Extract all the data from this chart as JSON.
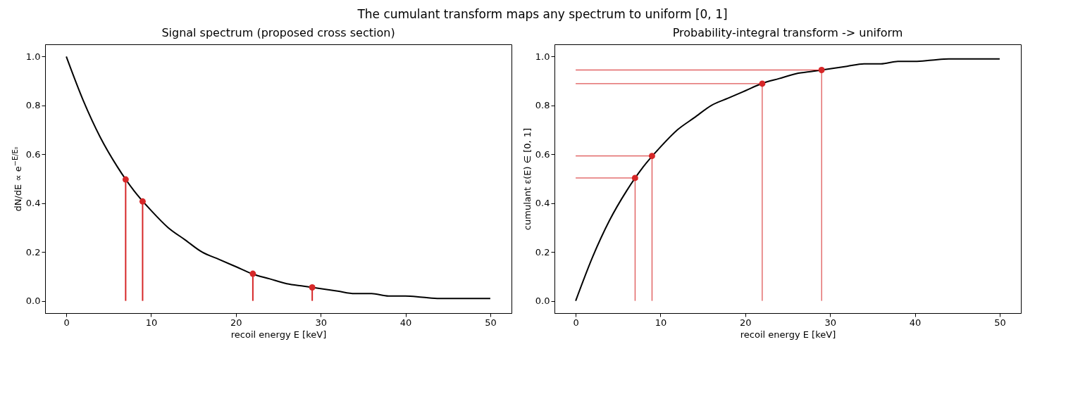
{
  "chart_data": [
    {
      "type": "line",
      "title": "Signal spectrum (proposed cross section)",
      "xlabel": "recoil energy E [keV]",
      "ylabel": "dN/dE ∝ e$^{−E/E₀}$",
      "annotations": [
        "The cumulant transform maps any spectrum to uniform [0, 1]"
      ],
      "xlim": [
        -2.5,
        52.5
      ],
      "xticks": [
        0,
        10,
        20,
        30,
        40,
        50
      ],
      "ylim": [
        -0.05,
        1.05
      ],
      "yticks": [
        {
          "value": 0,
          "label": "0.0"
        },
        {
          "value": 0.2,
          "label": "0.2"
        },
        {
          "value": 0.4,
          "label": "0.4"
        },
        {
          "value": 0.6,
          "label": "0.6"
        },
        {
          "value": 0.8,
          "label": "0.8"
        },
        {
          "value": 1,
          "label": "1.0"
        }
      ],
      "grid": false,
      "series": [
        {
          "color": "#000000",
          "x": [
            0,
            2,
            4,
            6,
            8,
            10,
            12,
            14,
            16,
            18,
            20,
            22,
            24,
            26,
            28,
            30,
            32,
            34,
            36,
            38,
            40,
            42,
            44,
            46,
            48,
            50
          ],
          "values": [
            1.0,
            0.82,
            0.67,
            0.55,
            0.45,
            0.37,
            0.3,
            0.25,
            0.2,
            0.17,
            0.14,
            0.11,
            0.09,
            0.07,
            0.06,
            0.05,
            0.04,
            0.03,
            0.03,
            0.02,
            0.02,
            0.015,
            0.01,
            0.01,
            0.01,
            0.01
          ]
        },
        {
          "type": "lollipop",
          "color": "#d62728",
          "marker": "circle",
          "x": [
            7,
            9,
            22,
            29
          ],
          "values": [
            0.497,
            0.407,
            0.111,
            0.055
          ]
        }
      ]
    },
    {
      "type": "line",
      "title": "Probability-integral transform -> uniform",
      "xlabel": "recoil energy E [keV]",
      "ylabel": "cumulant ε(E) ∈ [0, 1]",
      "xlim": [
        -2.5,
        52.5
      ],
      "xticks": [
        0,
        10,
        20,
        30,
        40,
        50
      ],
      "ylim": [
        -0.05,
        1.05
      ],
      "yticks": [
        {
          "value": 0,
          "label": "0.0"
        },
        {
          "value": 0.2,
          "label": "0.2"
        },
        {
          "value": 0.4,
          "label": "0.4"
        },
        {
          "value": 0.6,
          "label": "0.6"
        },
        {
          "value": 0.8,
          "label": "0.8"
        },
        {
          "value": 1,
          "label": "1.0"
        }
      ],
      "grid": false,
      "series": [
        {
          "color": "#000000",
          "x": [
            0,
            2,
            4,
            6,
            8,
            10,
            12,
            14,
            16,
            18,
            20,
            22,
            24,
            26,
            28,
            30,
            32,
            34,
            36,
            38,
            40,
            42,
            44,
            46,
            48,
            50
          ],
          "values": [
            0.0,
            0.18,
            0.33,
            0.45,
            0.55,
            0.63,
            0.7,
            0.75,
            0.8,
            0.83,
            0.86,
            0.89,
            0.91,
            0.93,
            0.94,
            0.95,
            0.96,
            0.97,
            0.97,
            0.98,
            0.98,
            0.985,
            0.99,
            0.99,
            0.99,
            0.99
          ]
        },
        {
          "type": "lollipop",
          "color": "#d62728",
          "marker": "circle",
          "x": [
            7,
            9,
            22,
            29
          ],
          "values": [
            0.503,
            0.593,
            0.889,
            0.945
          ]
        },
        {
          "type": "line",
          "color": "#d62728",
          "x": [
            0,
            7
          ],
          "values": [
            0.503,
            0.503
          ]
        },
        {
          "type": "line",
          "color": "#d62728",
          "x": [
            0,
            9
          ],
          "values": [
            0.593,
            0.593
          ]
        },
        {
          "type": "line",
          "color": "#d62728",
          "x": [
            0,
            22
          ],
          "values": [
            0.889,
            0.889
          ]
        },
        {
          "type": "line",
          "color": "#d62728",
          "x": [
            0,
            29
          ],
          "values": [
            0.945,
            0.945
          ]
        }
      ]
    }
  ]
}
